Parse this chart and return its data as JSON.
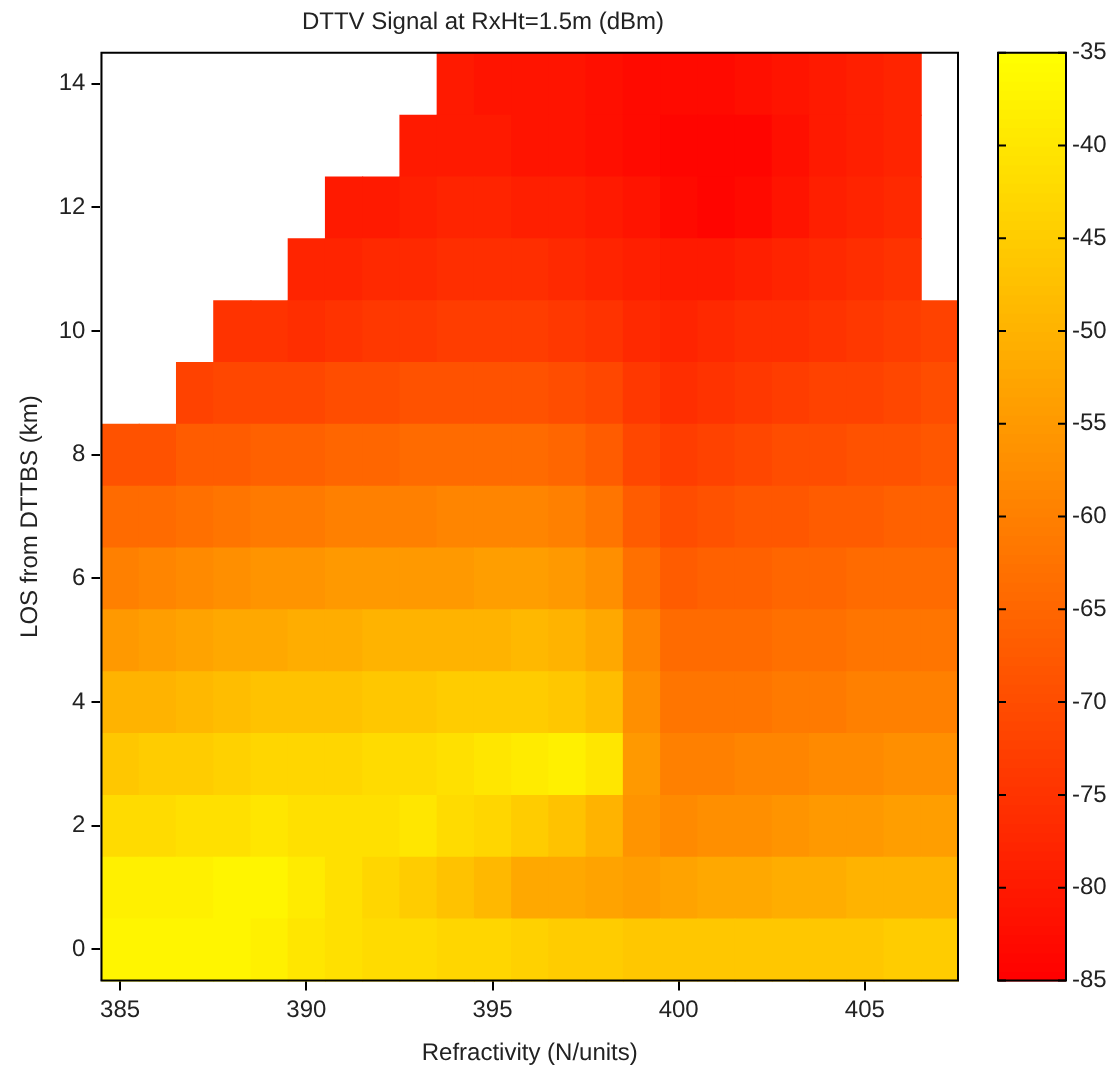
{
  "chart_data": {
    "type": "heatmap",
    "title": "DTTV Signal at RxHt=1.5m (dBm)",
    "xlabel": "Refractivity (N/units)",
    "ylabel": "LOS from DTTBS (km)",
    "categories": [
      "385",
      null,
      null,
      null,
      null,
      "390",
      null,
      null,
      null,
      null,
      "395",
      null,
      null,
      null,
      null,
      "400",
      null,
      null,
      null,
      null,
      "405",
      null,
      null
    ],
    "y_categories": [
      "14",
      null,
      "12",
      null,
      "10",
      null,
      "8",
      null,
      "6",
      null,
      "4",
      null,
      "2",
      null,
      "0"
    ],
    "cells": [
      [
        null,
        null,
        null,
        null,
        null,
        null,
        null,
        null,
        null,
        -80,
        -81,
        -81,
        -81,
        -82,
        -83,
        -83,
        -83,
        -82,
        -81,
        -80,
        -79,
        -78,
        null
      ],
      [
        null,
        null,
        null,
        null,
        null,
        null,
        null,
        null,
        -80,
        -80,
        -80,
        -81,
        -81,
        -82,
        -83,
        -84,
        -84,
        -84,
        -82,
        -80,
        -79,
        -78,
        null
      ],
      [
        null,
        null,
        null,
        null,
        null,
        null,
        -80,
        -80,
        -79,
        -78,
        -78,
        -79,
        -79,
        -80,
        -81,
        -83,
        -84,
        -83,
        -81,
        -79,
        -78,
        -77,
        null
      ],
      [
        null,
        null,
        null,
        null,
        null,
        -78,
        -78,
        -77,
        -77,
        -76,
        -76,
        -76,
        -77,
        -78,
        -79,
        -80,
        -80,
        -79,
        -78,
        -77,
        -76,
        -75,
        null
      ],
      [
        null,
        null,
        null,
        -75,
        -75,
        -76,
        -75,
        -74,
        -74,
        -73,
        -73,
        -73,
        -74,
        -75,
        -77,
        -78,
        -77,
        -76,
        -76,
        -75,
        -74,
        -73,
        -72
      ],
      [
        null,
        null,
        -72,
        -71,
        -71,
        -71,
        -70,
        -70,
        -69,
        -69,
        -69,
        -69,
        -70,
        -71,
        -74,
        -76,
        -75,
        -74,
        -73,
        -72,
        -72,
        -71,
        -70
      ],
      [
        -69,
        -69,
        -67,
        -67,
        -66,
        -66,
        -65,
        -65,
        -64,
        -64,
        -64,
        -64,
        -65,
        -67,
        -71,
        -73,
        -72,
        -71,
        -70,
        -70,
        -69,
        -69,
        -68
      ],
      [
        -64,
        -64,
        -63,
        -62,
        -61,
        -61,
        -60,
        -60,
        -60,
        -59,
        -59,
        -59,
        -60,
        -62,
        -67,
        -70,
        -69,
        -68,
        -68,
        -67,
        -67,
        -66,
        -66
      ],
      [
        -60,
        -59,
        -58,
        -57,
        -56,
        -56,
        -55,
        -55,
        -55,
        -55,
        -54,
        -54,
        -55,
        -57,
        -63,
        -67,
        -66,
        -66,
        -65,
        -65,
        -64,
        -64,
        -64
      ],
      [
        -55,
        -54,
        -53,
        -52,
        -52,
        -51,
        -51,
        -50,
        -50,
        -50,
        -50,
        -49,
        -50,
        -52,
        -59,
        -64,
        -64,
        -64,
        -63,
        -63,
        -62,
        -62,
        -62
      ],
      [
        -50,
        -50,
        -49,
        -48,
        -47,
        -47,
        -47,
        -46,
        -46,
        -45,
        -45,
        -45,
        -46,
        -48,
        -57,
        -62,
        -62,
        -62,
        -61,
        -61,
        -60,
        -60,
        -60
      ],
      [
        -46,
        -45,
        -45,
        -44,
        -43,
        -43,
        -43,
        -42,
        -42,
        -41,
        -40,
        -39,
        -38,
        -40,
        -55,
        -60,
        -60,
        -59,
        -59,
        -58,
        -58,
        -57,
        -57
      ],
      [
        -42,
        -42,
        -41,
        -41,
        -40,
        -41,
        -41,
        -41,
        -40,
        -42,
        -43,
        -45,
        -47,
        -50,
        -56,
        -58,
        -57,
        -57,
        -56,
        -55,
        -55,
        -54,
        -54
      ],
      [
        -38,
        -38,
        -38,
        -37,
        -37,
        -39,
        -41,
        -43,
        -45,
        -47,
        -49,
        -52,
        -52,
        -53,
        -54,
        -53,
        -52,
        -52,
        -51,
        -51,
        -50,
        -50,
        -50
      ],
      [
        -37,
        -37,
        -37,
        -37,
        -38,
        -40,
        -41,
        -42,
        -42,
        -43,
        -43,
        -44,
        -45,
        -45,
        -46,
        -46,
        -46,
        -46,
        -46,
        -46,
        -46,
        -45,
        -45
      ]
    ],
    "clim": [
      -85,
      -35
    ],
    "cticks": [
      -85,
      -80,
      -75,
      -70,
      -65,
      -60,
      -55,
      -50,
      -45,
      -40,
      -35
    ]
  }
}
